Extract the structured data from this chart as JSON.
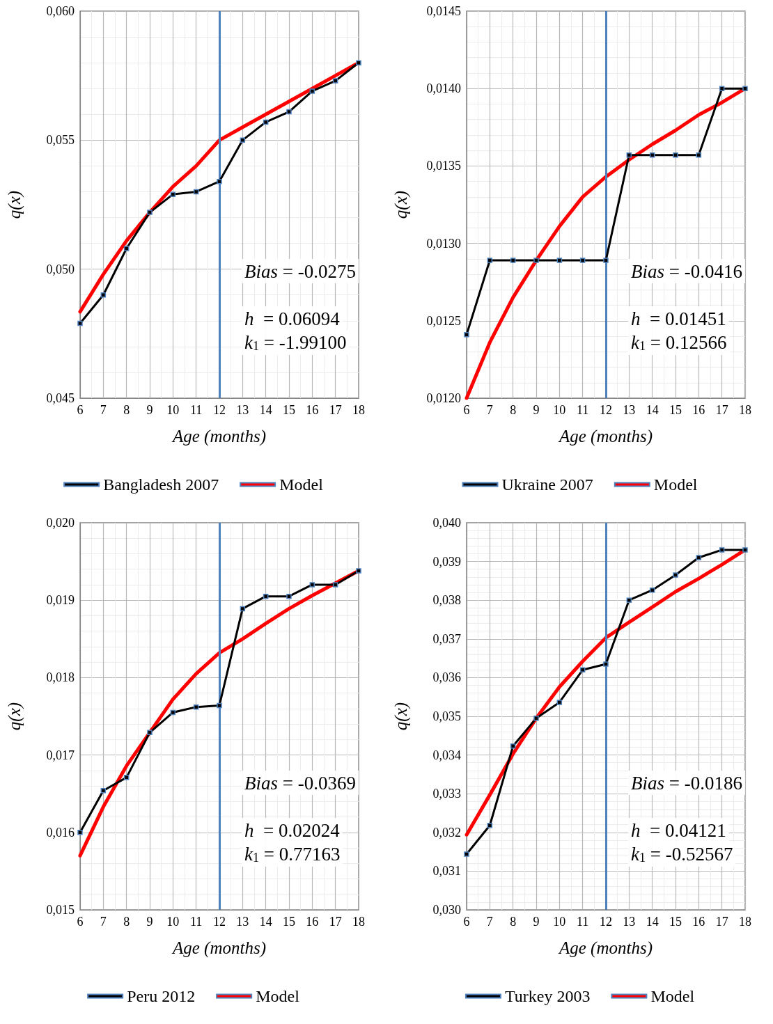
{
  "chart_data": [
    {
      "type": "line",
      "xlabel": "Age (months)",
      "ylabel": "q(x)",
      "x": [
        6,
        7,
        8,
        9,
        10,
        11,
        12,
        13,
        14,
        15,
        16,
        17,
        18
      ],
      "xlim": [
        6,
        18
      ],
      "xticks": [
        6,
        7,
        8,
        9,
        10,
        11,
        12,
        13,
        14,
        15,
        16,
        17,
        18
      ],
      "ylim": [
        0.045,
        0.06
      ],
      "yticks": [
        {
          "value": 0.045,
          "label": "0,045"
        },
        {
          "value": 0.05,
          "label": "0,050"
        },
        {
          "value": 0.055,
          "label": "0,055"
        },
        {
          "value": 0.06,
          "label": "0,060"
        }
      ],
      "grid": true,
      "legend": "bottom",
      "series": [
        {
          "name": "Bangladesh 2007",
          "color": "#000000",
          "marker": "square",
          "values": [
            0.0479,
            0.049,
            0.0508,
            0.0522,
            0.0529,
            0.053,
            0.0534,
            0.055,
            0.0557,
            0.0561,
            0.0569,
            0.0573,
            0.058
          ]
        },
        {
          "name": "Model",
          "color": "#ff0000",
          "marker": "none",
          "values": [
            0.04835,
            0.0498,
            0.0511,
            0.0522,
            0.0532,
            0.054,
            0.055,
            0.0555,
            0.056,
            0.0565,
            0.057,
            0.0575,
            0.058
          ]
        }
      ],
      "ref_lines": [
        {
          "axis": "x",
          "value": 12,
          "color": "#4f81bd"
        }
      ],
      "annotations": [
        "Bias = -0.0275",
        "h  = 0.06094",
        "k$_{1}$ = -1.99100"
      ]
    },
    {
      "type": "line",
      "xlabel": "Age (months)",
      "ylabel": "q(x)",
      "x": [
        6,
        7,
        8,
        9,
        10,
        11,
        12,
        13,
        14,
        15,
        16,
        17,
        18
      ],
      "xlim": [
        6,
        18
      ],
      "xticks": [
        6,
        7,
        8,
        9,
        10,
        11,
        12,
        13,
        14,
        15,
        16,
        17,
        18
      ],
      "ylim": [
        0.012,
        0.0145
      ],
      "yticks": [
        {
          "value": 0.012,
          "label": "0,0120"
        },
        {
          "value": 0.0125,
          "label": "0,0125"
        },
        {
          "value": 0.013,
          "label": "0,0130"
        },
        {
          "value": 0.0135,
          "label": "0,0135"
        },
        {
          "value": 0.014,
          "label": "0,0140"
        },
        {
          "value": 0.0145,
          "label": "0,0145"
        }
      ],
      "grid": true,
      "legend": "bottom",
      "series": [
        {
          "name": "Ukraine 2007",
          "color": "#000000",
          "marker": "square",
          "values": [
            0.01241,
            0.01289,
            0.01289,
            0.01289,
            0.01289,
            0.01289,
            0.01289,
            0.01357,
            0.01357,
            0.01357,
            0.01357,
            0.014,
            0.014
          ]
        },
        {
          "name": "Model",
          "color": "#ff0000",
          "marker": "none",
          "values": [
            0.012,
            0.01236,
            0.01265,
            0.01289,
            0.01311,
            0.0133,
            0.01343,
            0.01354,
            0.01364,
            0.01373,
            0.01383,
            0.01391,
            0.014
          ]
        }
      ],
      "ref_lines": [
        {
          "axis": "x",
          "value": 12,
          "color": "#4f81bd"
        }
      ],
      "annotations": [
        "Bias = -0.0416",
        "h  = 0.01451",
        "k$_{1}$ = 0.12566"
      ]
    },
    {
      "type": "line",
      "xlabel": "Age (months)",
      "ylabel": "q(x)",
      "x": [
        6,
        7,
        8,
        9,
        10,
        11,
        12,
        13,
        14,
        15,
        16,
        17,
        18
      ],
      "xlim": [
        6,
        18
      ],
      "xticks": [
        6,
        7,
        8,
        9,
        10,
        11,
        12,
        13,
        14,
        15,
        16,
        17,
        18
      ],
      "ylim": [
        0.015,
        0.02
      ],
      "yticks": [
        {
          "value": 0.015,
          "label": "0,015"
        },
        {
          "value": 0.016,
          "label": "0,016"
        },
        {
          "value": 0.017,
          "label": "0,017"
        },
        {
          "value": 0.018,
          "label": "0,018"
        },
        {
          "value": 0.019,
          "label": "0,019"
        },
        {
          "value": 0.02,
          "label": "0,020"
        }
      ],
      "grid": true,
      "legend": "bottom",
      "series": [
        {
          "name": "Peru 2012",
          "color": "#000000",
          "marker": "square",
          "values": [
            0.016,
            0.01654,
            0.01671,
            0.01729,
            0.01755,
            0.01762,
            0.01764,
            0.01889,
            0.01905,
            0.01905,
            0.0192,
            0.0192,
            0.01938
          ]
        },
        {
          "name": "Model",
          "color": "#ff0000",
          "marker": "none",
          "values": [
            0.0157,
            0.01633,
            0.01686,
            0.01729,
            0.01772,
            0.01805,
            0.01832,
            0.0185,
            0.0187,
            0.01889,
            0.01906,
            0.01922,
            0.01938
          ]
        }
      ],
      "ref_lines": [
        {
          "axis": "x",
          "value": 12,
          "color": "#4f81bd"
        }
      ],
      "annotations": [
        "Bias = -0.0369",
        "h  = 0.02024",
        "k$_{1}$ = 0.77163"
      ]
    },
    {
      "type": "line",
      "xlabel": "Age (months)",
      "ylabel": "q(x)",
      "x": [
        6,
        7,
        8,
        9,
        10,
        11,
        12,
        13,
        14,
        15,
        16,
        17,
        18
      ],
      "xlim": [
        6,
        18
      ],
      "xticks": [
        6,
        7,
        8,
        9,
        10,
        11,
        12,
        13,
        14,
        15,
        16,
        17,
        18
      ],
      "ylim": [
        0.03,
        0.04
      ],
      "yticks": [
        {
          "value": 0.03,
          "label": "0,030"
        },
        {
          "value": 0.031,
          "label": "0,031"
        },
        {
          "value": 0.032,
          "label": "0,032"
        },
        {
          "value": 0.033,
          "label": "0,033"
        },
        {
          "value": 0.034,
          "label": "0,034"
        },
        {
          "value": 0.035,
          "label": "0,035"
        },
        {
          "value": 0.036,
          "label": "0,036"
        },
        {
          "value": 0.037,
          "label": "0,037"
        },
        {
          "value": 0.038,
          "label": "0,038"
        },
        {
          "value": 0.039,
          "label": "0,039"
        },
        {
          "value": 0.04,
          "label": "0,040"
        }
      ],
      "grid": true,
      "legend": "bottom",
      "series": [
        {
          "name": "Turkey 2003",
          "color": "#000000",
          "marker": "square",
          "values": [
            0.03144,
            0.03218,
            0.03423,
            0.03495,
            0.03536,
            0.0362,
            0.03635,
            0.038,
            0.03826,
            0.03865,
            0.0391,
            0.0393,
            0.0393
          ]
        },
        {
          "name": "Model",
          "color": "#ff0000",
          "marker": "none",
          "values": [
            0.03194,
            0.03297,
            0.03403,
            0.03495,
            0.03576,
            0.03642,
            0.03703,
            0.03743,
            0.03782,
            0.03822,
            0.03856,
            0.03892,
            0.0393
          ]
        }
      ],
      "ref_lines": [
        {
          "axis": "x",
          "value": 12,
          "color": "#4f81bd"
        }
      ],
      "annotations": [
        "Bias = -0.0186",
        "h  = 0.04121",
        "k$_{1}$ = -0.52567"
      ]
    }
  ]
}
